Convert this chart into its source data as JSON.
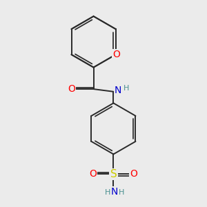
{
  "bg_color": "#ebebeb",
  "atom_colors": {
    "C": "#000000",
    "O": "#ff0000",
    "N": "#0000cc",
    "S": "#cccc00",
    "H": "#4a9090"
  },
  "bond_color": "#2a2a2a",
  "bond_width": 1.4,
  "font_size": 10
}
